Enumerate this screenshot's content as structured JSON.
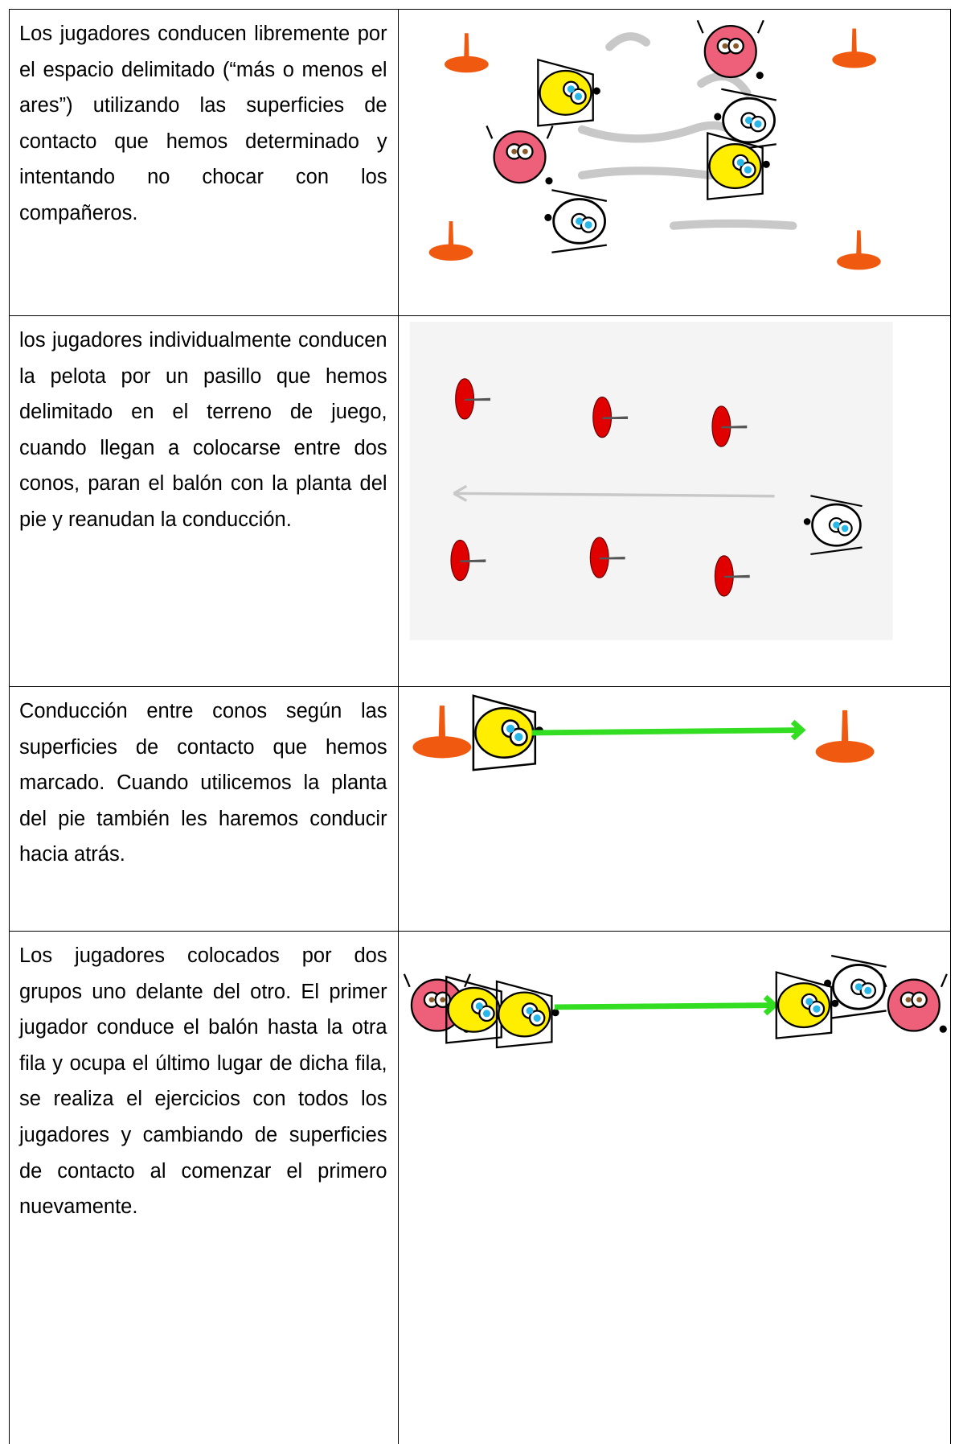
{
  "table": {
    "rows": [
      {
        "text": "Los jugadores conducen libremente por el espacio delimitado (“más o menos el ares”) utilizando las superficies de contacto que hemos determinado y intentando no chocar con los compañeros."
      },
      {
        "text": "los jugadores individualmente conducen la pelota por un pasillo que hemos delimitado en el terreno de juego, cuando llegan a colocarse entre dos conos, paran el balón con la planta del pie y reanudan la conducción."
      },
      {
        "text": "Conducción entre conos según las superficies de contacto que hemos marcado. Cuando utilicemos la planta del pie también les haremos conducir hacia atrás."
      },
      {
        "text": "Los jugadores colocados por dos grupos uno delante del otro. El primer jugador conduce el balón hasta la otra fila y ocupa el último lugar de dicha fila, se realiza el ejercicios con todos los jugadores y cambiando de superficies de contacto al comenzar el primero nuevamente."
      }
    ]
  }
}
